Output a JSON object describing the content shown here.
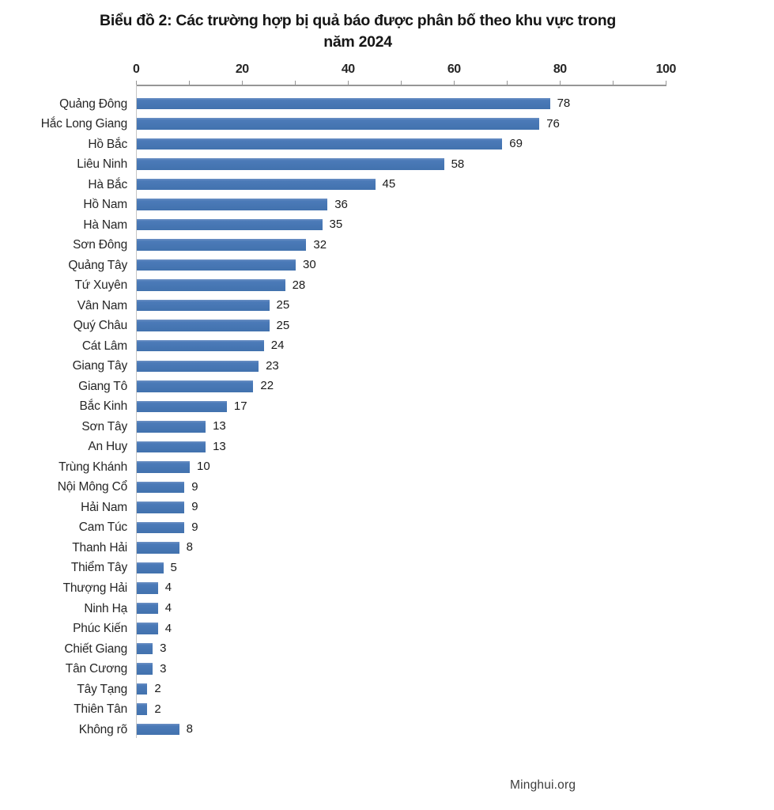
{
  "title": {
    "line1": "Biểu đồ 2: Các trường hợp bị quả báo được phân bố theo khu vực trong",
    "line2": "năm 2024"
  },
  "footer": {
    "text": "Minghui.org"
  },
  "colors": {
    "bar": "#4575B4",
    "axis_line": "#969696",
    "y_axis_line": "#C6C6C6",
    "text": "#262626"
  },
  "chart_data": {
    "type": "bar",
    "orientation": "horizontal",
    "title": "Biểu đồ 2: Các trường hợp bị quả báo được phân bố theo khu vực trong năm 2024",
    "categories": [
      "Quảng Đông",
      "Hắc Long Giang",
      "Hồ Bắc",
      "Liêu Ninh",
      "Hà Bắc",
      "Hồ Nam",
      "Hà Nam",
      "Sơn Đông",
      "Quảng Tây",
      "Tứ Xuyên",
      "Vân Nam",
      "Quý Châu",
      "Cát Lâm",
      "Giang Tây",
      "Giang Tô",
      "Bắc Kinh",
      "Sơn Tây",
      "An Huy",
      "Trùng Khánh",
      "Nội Mông Cổ",
      "Hải Nam",
      "Cam Túc",
      "Thanh Hải",
      "Thiểm Tây",
      "Thượng Hải",
      "Ninh Hạ",
      "Phúc Kiến",
      "Chiết Giang",
      "Tân Cương",
      "Tây Tạng",
      "Thiên Tân",
      "Không rõ"
    ],
    "values": [
      78,
      76,
      69,
      58,
      45,
      36,
      35,
      32,
      30,
      28,
      25,
      25,
      24,
      23,
      22,
      17,
      13,
      13,
      10,
      9,
      9,
      9,
      8,
      5,
      4,
      4,
      4,
      3,
      3,
      2,
      2,
      8
    ],
    "xlim": [
      0,
      100
    ],
    "x_major_ticks": [
      0,
      20,
      40,
      60,
      80,
      100
    ],
    "x_minor_tick_step": 10,
    "value_labels_shown": true,
    "gridlines": false,
    "legend": false,
    "source": "Minghui.org"
  }
}
